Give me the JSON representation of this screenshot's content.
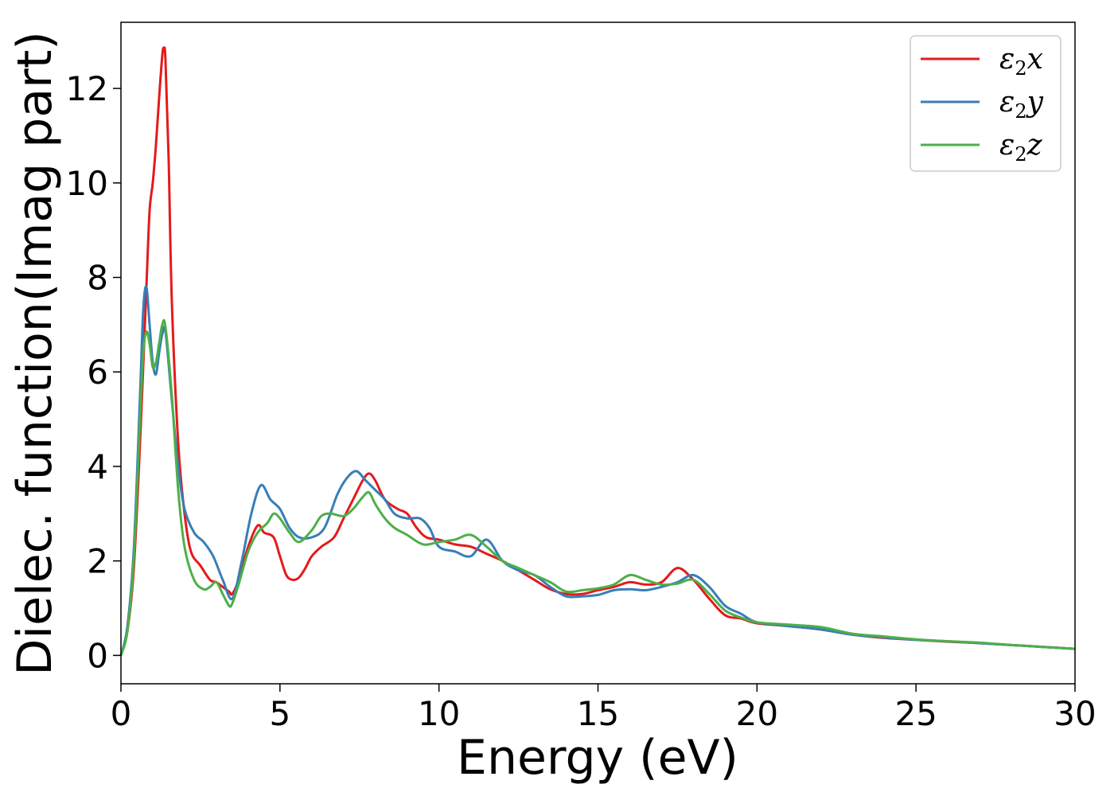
{
  "chart_data": {
    "type": "line",
    "title": "",
    "xlabel": "Energy (eV)",
    "ylabel": "Dielec. function(Imag part)",
    "xlim": [
      0,
      30
    ],
    "ylim": [
      -0.6,
      13.4
    ],
    "xticks": [
      0,
      5,
      10,
      15,
      20,
      25,
      30
    ],
    "yticks": [
      0,
      2,
      4,
      6,
      8,
      10,
      12
    ],
    "grid": false,
    "legend_position": "top-right",
    "series": [
      {
        "name_main": "ε",
        "name_sub": "2",
        "name_suffix": "x",
        "color": "#e41a1c",
        "x": [
          0,
          0.2,
          0.4,
          0.6,
          0.8,
          0.9,
          1.0,
          1.1,
          1.2,
          1.3,
          1.35,
          1.4,
          1.5,
          1.6,
          1.8,
          2.0,
          2.2,
          2.5,
          2.8,
          3.0,
          3.2,
          3.4,
          3.5,
          3.7,
          4.0,
          4.3,
          4.5,
          4.8,
          5.0,
          5.2,
          5.4,
          5.6,
          5.8,
          6.0,
          6.3,
          6.7,
          7.0,
          7.3,
          7.6,
          7.8,
          8.0,
          8.3,
          8.7,
          9.0,
          9.3,
          9.6,
          10.0,
          10.5,
          11.0,
          11.5,
          12.0,
          12.5,
          13.0,
          13.5,
          14.0,
          14.5,
          15.0,
          15.5,
          16.0,
          16.5,
          17.0,
          17.5,
          18.0,
          18.5,
          19.0,
          19.5,
          20.0,
          21.0,
          22.0,
          23.0,
          24.0,
          25.0,
          26.0,
          27.0,
          28.0,
          29.0,
          30.0
        ],
        "y": [
          0.0,
          0.5,
          1.8,
          4.5,
          7.8,
          9.4,
          10.0,
          10.8,
          11.8,
          12.7,
          12.85,
          12.6,
          10.5,
          7.5,
          4.5,
          3.0,
          2.2,
          1.9,
          1.6,
          1.55,
          1.45,
          1.35,
          1.3,
          1.6,
          2.3,
          2.75,
          2.6,
          2.5,
          2.1,
          1.7,
          1.6,
          1.65,
          1.85,
          2.1,
          2.3,
          2.5,
          2.9,
          3.3,
          3.7,
          3.85,
          3.7,
          3.3,
          3.1,
          3.0,
          2.7,
          2.5,
          2.45,
          2.35,
          2.3,
          2.15,
          2.0,
          1.8,
          1.6,
          1.4,
          1.3,
          1.3,
          1.38,
          1.45,
          1.55,
          1.5,
          1.55,
          1.85,
          1.6,
          1.2,
          0.85,
          0.78,
          0.68,
          0.62,
          0.55,
          0.44,
          0.37,
          0.33,
          0.29,
          0.26,
          0.22,
          0.18,
          0.14
        ]
      },
      {
        "name_main": "ε",
        "name_sub": "2",
        "name_suffix": "y",
        "color": "#377eb8",
        "x": [
          0,
          0.2,
          0.4,
          0.6,
          0.7,
          0.8,
          0.9,
          1.0,
          1.1,
          1.2,
          1.3,
          1.4,
          1.6,
          1.8,
          2.0,
          2.3,
          2.6,
          2.9,
          3.2,
          3.5,
          3.8,
          4.1,
          4.4,
          4.7,
          5.0,
          5.3,
          5.6,
          6.0,
          6.4,
          6.8,
          7.1,
          7.4,
          7.7,
          8.0,
          8.3,
          8.6,
          9.0,
          9.4,
          9.7,
          10.0,
          10.5,
          11.0,
          11.5,
          12.0,
          12.5,
          13.0,
          13.5,
          14.0,
          14.5,
          15.0,
          15.5,
          16.0,
          16.5,
          17.0,
          17.5,
          18.0,
          18.5,
          19.0,
          19.5,
          20.0,
          21.0,
          22.0,
          23.0,
          24.0,
          25.0,
          26.0,
          27.0,
          28.0,
          29.0,
          30.0
        ],
        "y": [
          0.0,
          0.6,
          2.2,
          5.5,
          7.3,
          7.8,
          7.0,
          6.2,
          5.95,
          6.4,
          6.8,
          6.85,
          5.4,
          4.0,
          3.1,
          2.6,
          2.4,
          2.1,
          1.6,
          1.2,
          2.0,
          3.0,
          3.6,
          3.3,
          3.1,
          2.7,
          2.5,
          2.5,
          2.7,
          3.4,
          3.75,
          3.9,
          3.7,
          3.5,
          3.3,
          3.0,
          2.9,
          2.9,
          2.7,
          2.3,
          2.2,
          2.1,
          2.45,
          2.0,
          1.8,
          1.7,
          1.45,
          1.25,
          1.25,
          1.28,
          1.38,
          1.4,
          1.38,
          1.45,
          1.55,
          1.7,
          1.45,
          1.05,
          0.88,
          0.7,
          0.62,
          0.55,
          0.44,
          0.38,
          0.33,
          0.3,
          0.26,
          0.22,
          0.18,
          0.14
        ]
      },
      {
        "name_main": "ε",
        "name_sub": "2",
        "name_suffix": "z",
        "color": "#4daf4a",
        "x": [
          0,
          0.2,
          0.4,
          0.6,
          0.7,
          0.8,
          0.9,
          1.0,
          1.1,
          1.2,
          1.3,
          1.4,
          1.6,
          1.8,
          2.0,
          2.3,
          2.6,
          2.8,
          3.0,
          3.2,
          3.4,
          3.5,
          3.7,
          4.0,
          4.3,
          4.6,
          4.8,
          5.0,
          5.3,
          5.6,
          6.0,
          6.3,
          6.6,
          7.0,
          7.3,
          7.6,
          7.8,
          8.0,
          8.3,
          8.6,
          9.0,
          9.5,
          10.0,
          10.5,
          11.0,
          11.5,
          12.0,
          12.5,
          13.0,
          13.5,
          14.0,
          14.5,
          15.0,
          15.5,
          16.0,
          16.5,
          17.0,
          17.5,
          18.0,
          18.5,
          19.0,
          19.5,
          20.0,
          21.0,
          22.0,
          23.0,
          24.0,
          25.0,
          26.0,
          27.0,
          28.0,
          29.0,
          30.0
        ],
        "y": [
          0.0,
          0.5,
          2.0,
          5.0,
          6.4,
          6.85,
          6.6,
          6.1,
          6.2,
          6.6,
          7.0,
          6.95,
          5.5,
          3.5,
          2.3,
          1.6,
          1.4,
          1.45,
          1.55,
          1.3,
          1.05,
          1.1,
          1.5,
          2.2,
          2.6,
          2.8,
          3.0,
          2.9,
          2.6,
          2.4,
          2.65,
          2.95,
          3.0,
          2.95,
          3.1,
          3.35,
          3.45,
          3.2,
          2.9,
          2.7,
          2.55,
          2.35,
          2.4,
          2.45,
          2.55,
          2.3,
          2.0,
          1.85,
          1.7,
          1.55,
          1.35,
          1.38,
          1.42,
          1.5,
          1.7,
          1.6,
          1.5,
          1.52,
          1.6,
          1.3,
          0.95,
          0.8,
          0.7,
          0.65,
          0.6,
          0.46,
          0.4,
          0.34,
          0.3,
          0.27,
          0.22,
          0.18,
          0.14
        ]
      }
    ]
  }
}
